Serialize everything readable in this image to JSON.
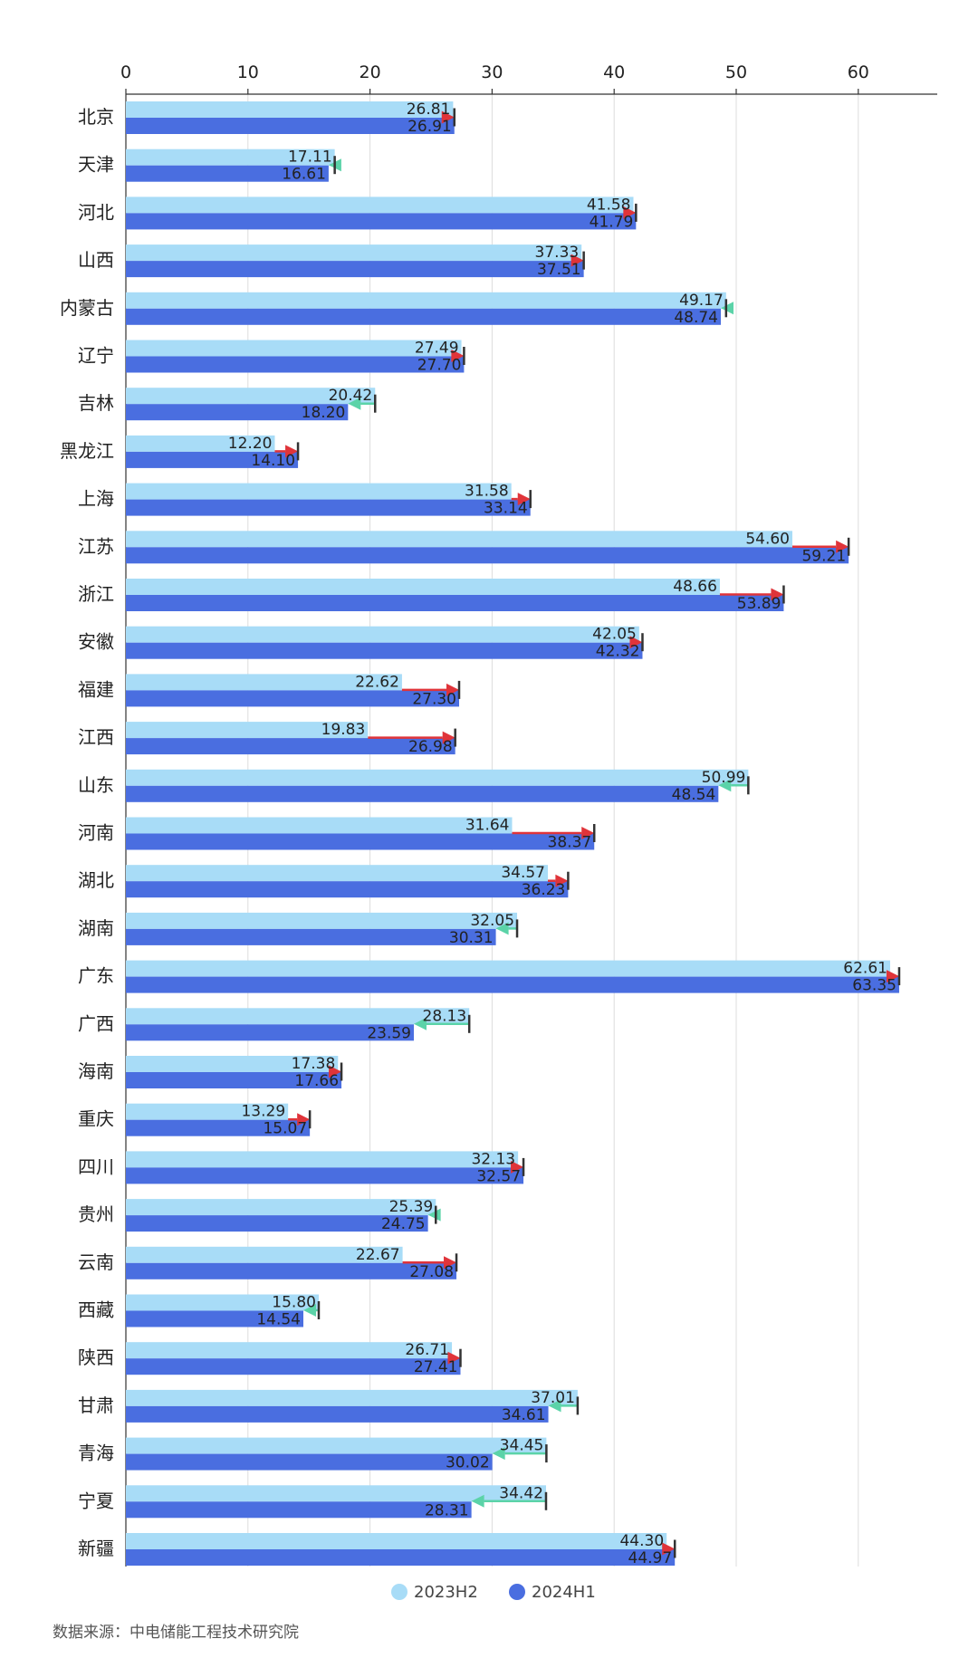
{
  "chart_data": {
    "type": "bar",
    "orientation": "horizontal",
    "categories": [
      "北京",
      "天津",
      "河北",
      "山西",
      "内蒙古",
      "辽宁",
      "吉林",
      "黑龙江",
      "上海",
      "江苏",
      "浙江",
      "安徽",
      "福建",
      "江西",
      "山东",
      "河南",
      "湖北",
      "湖南",
      "广东",
      "广西",
      "海南",
      "重庆",
      "四川",
      "贵州",
      "云南",
      "西藏",
      "陕西",
      "甘肃",
      "青海",
      "宁夏",
      "新疆"
    ],
    "series": [
      {
        "name": "2023H2",
        "color": "#a8dcf7",
        "values": [
          26.81,
          17.11,
          41.58,
          37.33,
          49.17,
          27.49,
          20.42,
          12.2,
          31.58,
          54.6,
          48.66,
          42.05,
          22.62,
          19.83,
          50.99,
          31.64,
          34.57,
          32.05,
          62.61,
          28.13,
          17.38,
          13.29,
          32.13,
          25.39,
          22.67,
          15.8,
          26.71,
          37.01,
          34.45,
          34.42,
          44.3
        ],
        "labels": [
          "26.81",
          "17.11",
          "41.58",
          "37.33",
          "49.17",
          "27.49",
          "20.42",
          "12.20",
          "31.58",
          "54.60",
          "48.66",
          "42.05",
          "22.62",
          "19.83",
          "50.99",
          "31.64",
          "34.57",
          "32.05",
          "62.61",
          "28.13",
          "17.38",
          "13.29",
          "32.13",
          "25.39",
          "22.67",
          "15.80",
          "26.71",
          "37.01",
          "34.45",
          "34.42",
          "44.30"
        ]
      },
      {
        "name": "2024H1",
        "color": "#4a6ee0",
        "values": [
          26.91,
          16.61,
          41.79,
          37.51,
          48.74,
          27.7,
          18.2,
          14.1,
          33.14,
          59.21,
          53.89,
          42.32,
          27.3,
          26.98,
          48.54,
          38.37,
          36.23,
          30.31,
          63.35,
          23.59,
          17.66,
          15.07,
          32.57,
          24.75,
          27.08,
          14.54,
          27.41,
          34.61,
          30.02,
          28.31,
          44.97
        ],
        "labels": [
          "26.91",
          "16.61",
          "41.79",
          "37.51",
          "48.74",
          "27.70",
          "18.20",
          "14.10",
          "33.14",
          "59.21",
          "53.89",
          "42.32",
          "27.30",
          "26.98",
          "48.54",
          "38.37",
          "36.23",
          "30.31",
          "63.35",
          "23.59",
          "17.66",
          "15.07",
          "32.57",
          "24.75",
          "27.08",
          "14.54",
          "27.41",
          "34.61",
          "30.02",
          "28.31",
          "44.97"
        ]
      }
    ],
    "x_ticks": [
      "0",
      "10",
      "20",
      "30",
      "40",
      "50",
      "60"
    ],
    "xlim": [
      0,
      66
    ],
    "grid": true,
    "arrow_up_color": "#e0343a",
    "arrow_down_color": "#5bd3a8",
    "legend": "bottom"
  },
  "source": "数据来源：中电储能工程技术研究院"
}
